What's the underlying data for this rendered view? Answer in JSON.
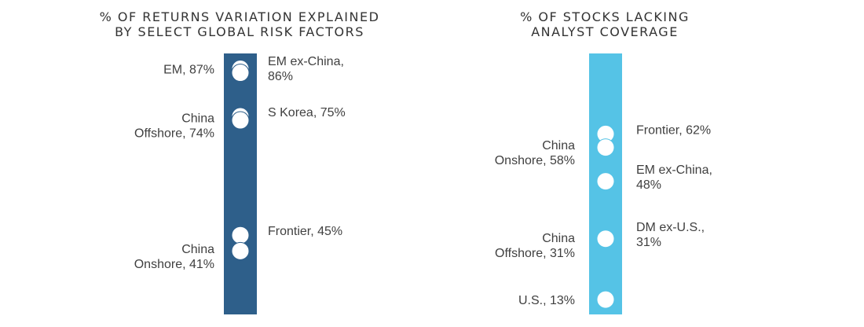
{
  "chart_data": [
    {
      "type": "scatter",
      "title": "% OF RETURNS VARIATION EXPLAINED\nBY SELECT GLOBAL RISK FACTORS",
      "bar_color": "#2e5f8a",
      "ylim": [
        25,
        100
      ],
      "points": [
        {
          "name": "EM",
          "value": 87,
          "label": "EM, 87%",
          "side": "left"
        },
        {
          "name": "EM ex-China",
          "value": 86,
          "label": "EM ex-China,\n86%",
          "side": "right"
        },
        {
          "name": "S Korea",
          "value": 75,
          "label": "S Korea, 75%",
          "side": "right"
        },
        {
          "name": "China Offshore",
          "value": 74,
          "label": "China\nOffshore, 74%",
          "side": "left"
        },
        {
          "name": "Frontier",
          "value": 45,
          "label": "Frontier, 45%",
          "side": "right"
        },
        {
          "name": "China Onshore",
          "value": 41,
          "label": "China\nOnshore, 41%",
          "side": "left"
        }
      ]
    },
    {
      "type": "scatter",
      "title": "% OF STOCKS LACKING\nANALYST COVERAGE",
      "bar_color": "#55c3e6",
      "ylim": [
        0,
        100
      ],
      "points": [
        {
          "name": "Frontier",
          "value": 62,
          "label": "Frontier, 62%",
          "side": "right"
        },
        {
          "name": "China Onshore",
          "value": 58,
          "label": "China\nOnshore, 58%",
          "side": "left"
        },
        {
          "name": "EM ex-China",
          "value": 48,
          "label": "EM ex-China,\n48%",
          "side": "right"
        },
        {
          "name": "DM ex-U.S.",
          "value": 31,
          "label": "DM ex-U.S.,\n31%",
          "side": "right"
        },
        {
          "name": "China Offshore",
          "value": 31,
          "label": "China\nOffshore, 31%",
          "side": "left"
        },
        {
          "name": "U.S.",
          "value": 13,
          "label": "U.S., 13%",
          "side": "left"
        }
      ]
    }
  ]
}
